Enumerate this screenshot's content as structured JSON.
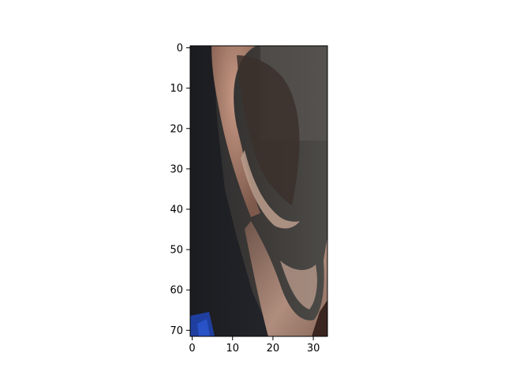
{
  "figure": {
    "image_description_icon": "ear-photo",
    "x_ticks": [
      "0",
      "10",
      "20",
      "30"
    ],
    "y_ticks": [
      "0",
      "10",
      "20",
      "30",
      "40",
      "50",
      "60",
      "70"
    ]
  },
  "chart_data": {
    "type": "image",
    "title": "",
    "xlabel": "",
    "ylabel": "",
    "xlim": [
      -0.5,
      33.5
    ],
    "ylim": [
      71.5,
      -0.5
    ],
    "x_tick_values": [
      0,
      10,
      20,
      30
    ],
    "y_tick_values": [
      0,
      10,
      20,
      30,
      40,
      50,
      60,
      70
    ],
    "grid": false
  }
}
